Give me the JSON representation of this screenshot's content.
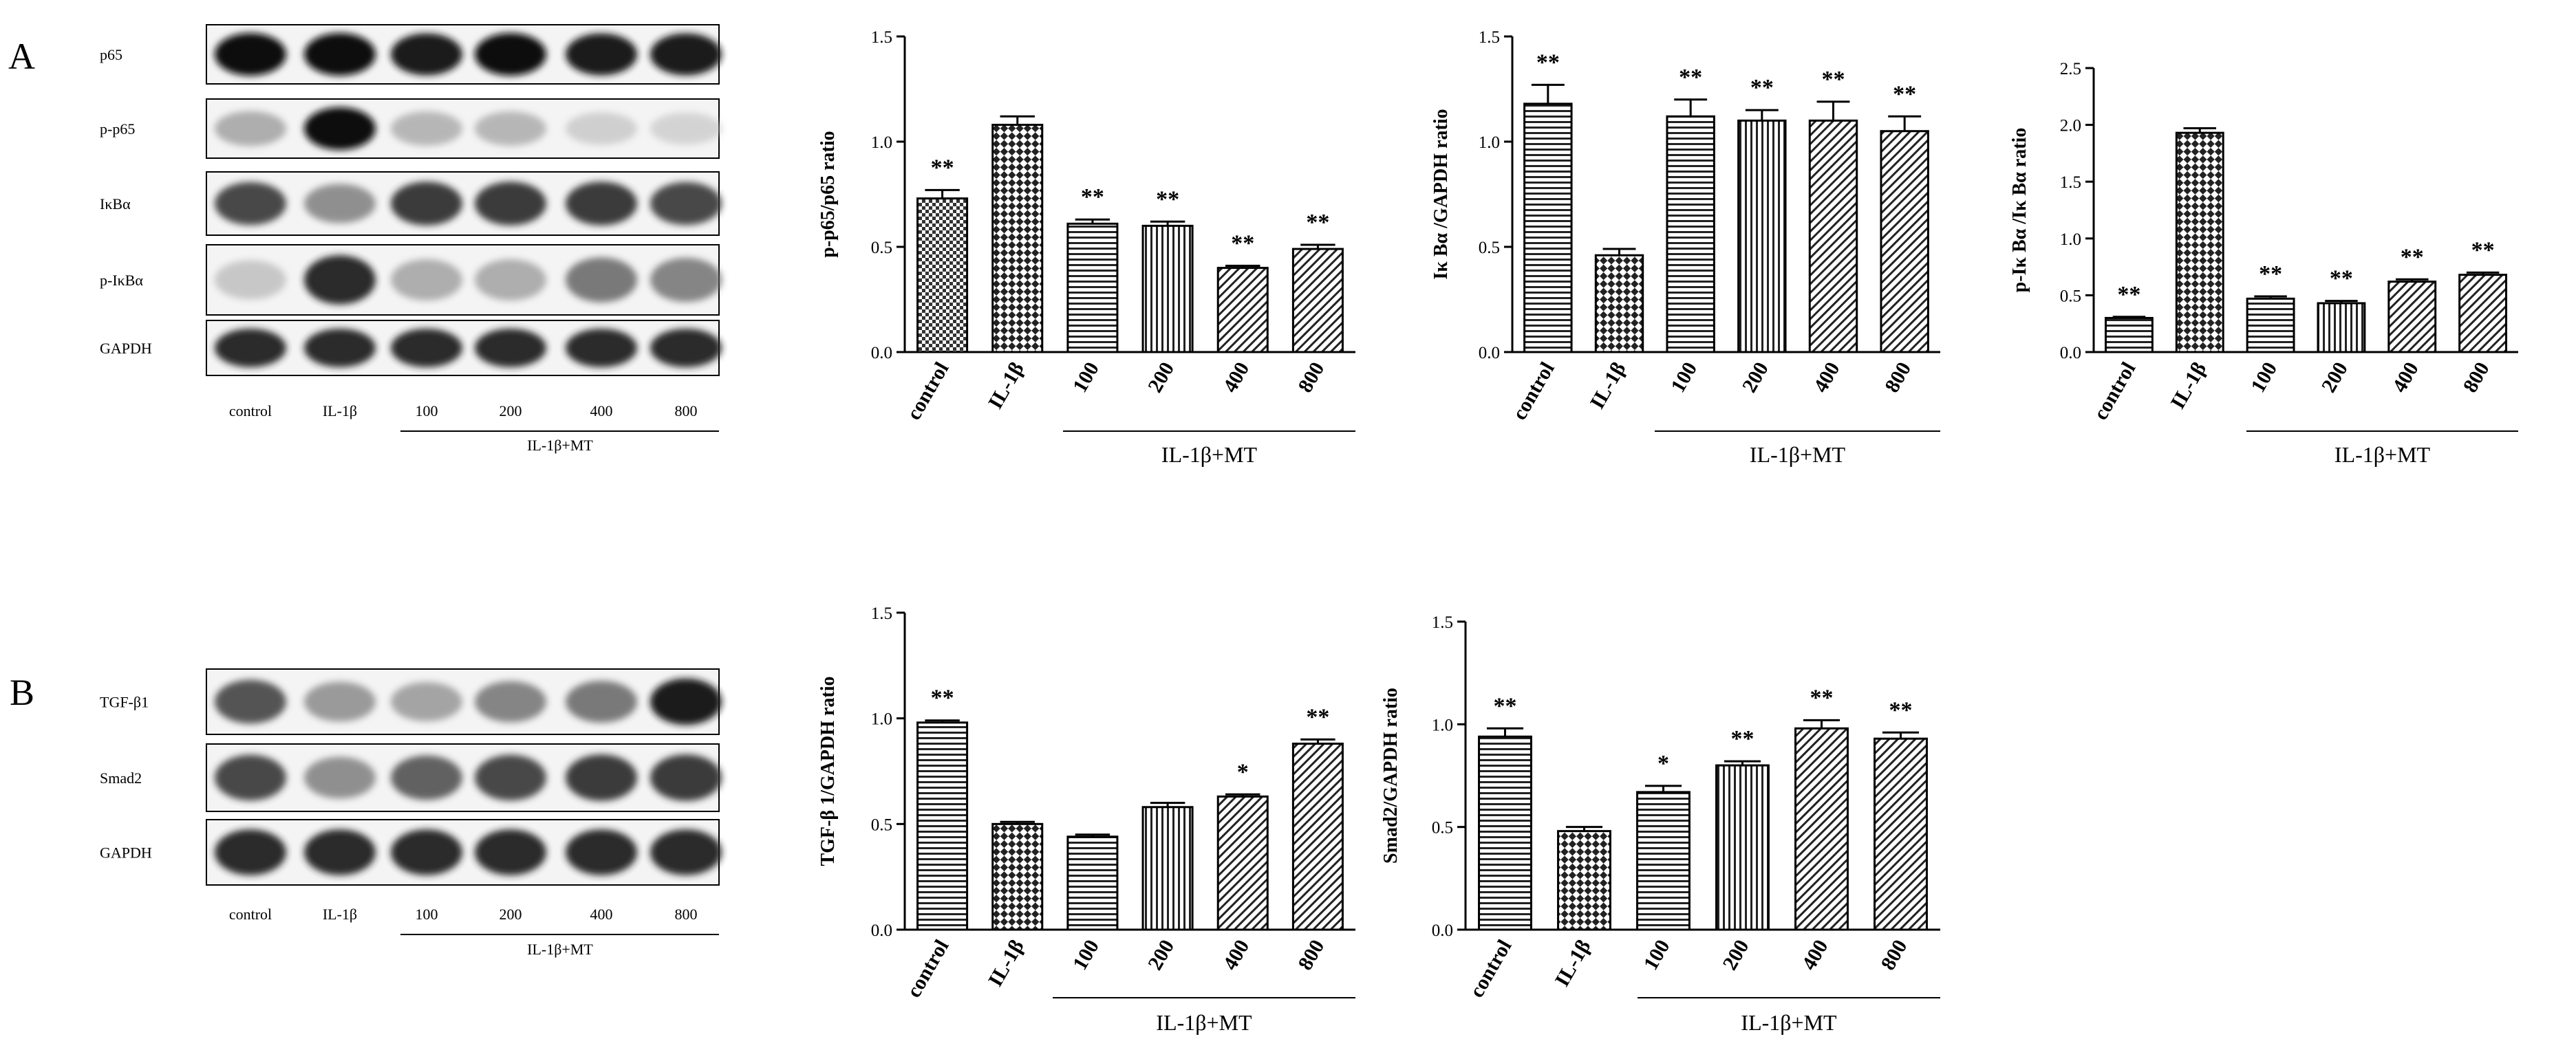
{
  "panel_labels": [
    "A",
    "B"
  ],
  "blots_A": {
    "rows": [
      "p65",
      "p-p65",
      "IκBα",
      "p-IκBα",
      "GAPDH"
    ],
    "lanes": [
      "control",
      "IL-1β",
      "100",
      "200",
      "400",
      "800"
    ],
    "group_label": "IL-1β+MT"
  },
  "blots_B": {
    "rows": [
      "TGF-β1",
      "Smad2",
      "GAPDH"
    ],
    "lanes": [
      "control",
      "IL-1β",
      "100",
      "200",
      "400",
      "800"
    ],
    "group_label": "IL-1β+MT"
  },
  "colors": {
    "ink": "#000000",
    "background": "#ffffff",
    "band": "#1a1a1a"
  },
  "chart_data": [
    {
      "type": "bar",
      "title": "",
      "ylabel": "p-p65/p65 ratio",
      "xlabel": "",
      "categories": [
        "control",
        "IL-1β",
        "100",
        "200",
        "400",
        "800"
      ],
      "values": [
        0.73,
        1.08,
        0.61,
        0.6,
        0.4,
        0.49
      ],
      "errors": [
        0.04,
        0.04,
        0.02,
        0.02,
        0.01,
        0.02
      ],
      "significance": [
        "**",
        "",
        "**",
        "**",
        "**",
        "**"
      ],
      "patterns": [
        "check",
        "check-big",
        "hlines",
        "vlines",
        "diag",
        "diag"
      ],
      "ylim": [
        0,
        1.5
      ],
      "yticks": [
        "0.0",
        "0.5",
        "1.0",
        "1.5"
      ],
      "group_label": "IL-1β+MT",
      "group_start": 2
    },
    {
      "type": "bar",
      "title": "",
      "ylabel": "Iκ Bα /GAPDH ratio",
      "xlabel": "",
      "categories": [
        "control",
        "IL-1β",
        "100",
        "200",
        "400",
        "800"
      ],
      "values": [
        1.18,
        0.46,
        1.12,
        1.1,
        1.1,
        1.05
      ],
      "errors": [
        0.09,
        0.03,
        0.08,
        0.05,
        0.09,
        0.07
      ],
      "significance": [
        "**",
        "",
        "**",
        "**",
        "**",
        "**"
      ],
      "patterns": [
        "hlines",
        "check-big",
        "hlines",
        "vlines",
        "diag",
        "diag"
      ],
      "ylim": [
        0,
        1.5
      ],
      "yticks": [
        "0.0",
        "0.5",
        "1.0",
        "1.5"
      ],
      "group_label": "IL-1β+MT",
      "group_start": 2
    },
    {
      "type": "bar",
      "title": "",
      "ylabel": "p-Iκ Bα /Iκ Bα ratio",
      "xlabel": "",
      "categories": [
        "control",
        "IL-1β",
        "100",
        "200",
        "400",
        "800"
      ],
      "values": [
        0.3,
        1.93,
        0.47,
        0.43,
        0.62,
        0.68
      ],
      "errors": [
        0.01,
        0.04,
        0.02,
        0.02,
        0.02,
        0.02
      ],
      "significance": [
        "**",
        "",
        "**",
        "**",
        "**",
        "**"
      ],
      "patterns": [
        "hlines",
        "check-big",
        "hlines",
        "vlines",
        "diag",
        "diag"
      ],
      "ylim": [
        0,
        2.5
      ],
      "yticks": [
        "0.0",
        "0.5",
        "1.0",
        "1.5",
        "2.0",
        "2.5"
      ],
      "group_label": "IL-1β+MT",
      "group_start": 2
    },
    {
      "type": "bar",
      "title": "",
      "ylabel": "TGF-β 1/GAPDH ratio",
      "xlabel": "",
      "categories": [
        "control",
        "IL-1β",
        "100",
        "200",
        "400",
        "800"
      ],
      "values": [
        0.98,
        0.5,
        0.44,
        0.58,
        0.63,
        0.88
      ],
      "errors": [
        0.01,
        0.01,
        0.01,
        0.02,
        0.01,
        0.02
      ],
      "significance": [
        "**",
        "",
        "",
        "",
        "*",
        "**"
      ],
      "patterns": [
        "hlines",
        "check-big",
        "hlines",
        "vlines",
        "diag",
        "diag"
      ],
      "ylim": [
        0,
        1.5
      ],
      "yticks": [
        "0.0",
        "0.5",
        "1.0",
        "1.5"
      ],
      "group_label": "IL-1β+MT",
      "group_start": 2
    },
    {
      "type": "bar",
      "title": "",
      "ylabel": "Smad2/GAPDH ratio",
      "xlabel": "",
      "categories": [
        "control",
        "IL-1β",
        "100",
        "200",
        "400",
        "800"
      ],
      "values": [
        0.94,
        0.48,
        0.67,
        0.8,
        0.98,
        0.93
      ],
      "errors": [
        0.04,
        0.02,
        0.03,
        0.02,
        0.04,
        0.03
      ],
      "significance": [
        "**",
        "",
        "*",
        "**",
        "**",
        "**"
      ],
      "patterns": [
        "hlines",
        "check-big",
        "hlines",
        "vlines",
        "diag",
        "diag"
      ],
      "ylim": [
        0,
        1.5
      ],
      "yticks": [
        "0.0",
        "0.5",
        "1.0",
        "1.5"
      ],
      "group_label": "IL-1β+MT",
      "group_start": 2
    }
  ]
}
